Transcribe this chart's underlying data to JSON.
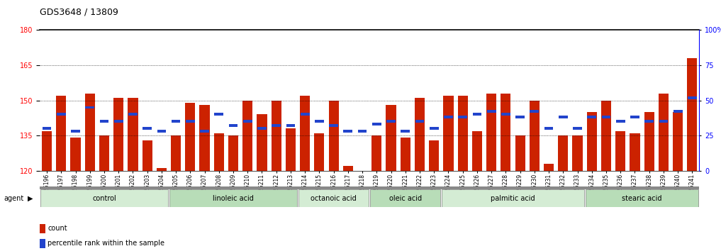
{
  "title": "GDS3648 / 13809",
  "samples": [
    "GSM525196",
    "GSM525197",
    "GSM525198",
    "GSM525199",
    "GSM525200",
    "GSM525201",
    "GSM525202",
    "GSM525203",
    "GSM525204",
    "GSM525205",
    "GSM525206",
    "GSM525207",
    "GSM525208",
    "GSM525209",
    "GSM525210",
    "GSM525211",
    "GSM525212",
    "GSM525213",
    "GSM525214",
    "GSM525215",
    "GSM525216",
    "GSM525217",
    "GSM525218",
    "GSM525219",
    "GSM525220",
    "GSM525221",
    "GSM525222",
    "GSM525223",
    "GSM525224",
    "GSM525225",
    "GSM525226",
    "GSM525227",
    "GSM525228",
    "GSM525229",
    "GSM525230",
    "GSM525231",
    "GSM525232",
    "GSM525233",
    "GSM525234",
    "GSM525235",
    "GSM525236",
    "GSM525237",
    "GSM525238",
    "GSM525239",
    "GSM525240",
    "GSM525241"
  ],
  "count_values": [
    137,
    152,
    134,
    153,
    135,
    151,
    151,
    133,
    121,
    135,
    149,
    148,
    136,
    135,
    150,
    144,
    150,
    138,
    152,
    136,
    150,
    122,
    120,
    135,
    148,
    134,
    151,
    133,
    152,
    152,
    137,
    153,
    153,
    135,
    150,
    123,
    135,
    135,
    145,
    150,
    137,
    136,
    145,
    153,
    145,
    168
  ],
  "percentile_values": [
    30,
    40,
    28,
    45,
    35,
    35,
    40,
    30,
    28,
    35,
    35,
    28,
    40,
    32,
    35,
    30,
    32,
    32,
    40,
    35,
    32,
    28,
    28,
    33,
    35,
    28,
    35,
    30,
    38,
    38,
    40,
    42,
    40,
    38,
    42,
    30,
    38,
    30,
    38,
    38,
    35,
    38,
    35,
    35,
    42,
    52
  ],
  "groups": [
    {
      "name": "control",
      "start": 0,
      "end": 8
    },
    {
      "name": "linoleic acid",
      "start": 9,
      "end": 17
    },
    {
      "name": "octanoic acid",
      "start": 18,
      "end": 22
    },
    {
      "name": "oleic acid",
      "start": 23,
      "end": 27
    },
    {
      "name": "palmitic acid",
      "start": 28,
      "end": 37
    },
    {
      "name": "stearic acid",
      "start": 38,
      "end": 45
    }
  ],
  "group_colors": [
    "#c8e6c8",
    "#b8ddb8",
    "#a8d4a8",
    "#c8e6c8",
    "#b8ddb8",
    "#a8d4a8"
  ],
  "ylim_left": [
    120,
    180
  ],
  "ylim_right": [
    0,
    100
  ],
  "yticks_left": [
    120,
    135,
    150,
    165,
    180
  ],
  "yticks_right": [
    0,
    25,
    50,
    75,
    100
  ],
  "bar_color": "#cc2200",
  "pct_color": "#2244cc",
  "bg_color": "#f0f0f0",
  "grid_color": "#000000",
  "title_fontsize": 10,
  "tick_fontsize": 6
}
